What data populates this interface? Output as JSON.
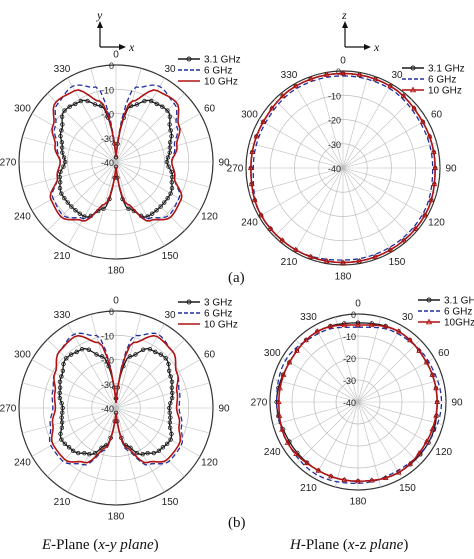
{
  "panel_labels": [
    "(a)",
    "(b)"
  ],
  "captions": {
    "left_plane": "E",
    "left_rest": "-Plane (",
    "left_axes": "x-y plane",
    "left_close": ")",
    "right_plane": "H",
    "right_rest": "-Plane (",
    "right_axes": "x",
    "right_mid": "-z ",
    "right_tail": "plane",
    "right_close": ")"
  },
  "axes_indicators": [
    {
      "vertical": "y",
      "horizontal": "x"
    },
    {
      "vertical": "z",
      "horizontal": "x"
    }
  ],
  "colors": {
    "black": "#1a1a1a",
    "blue": "#1f2f9e",
    "red": "#b01414",
    "grid": "#bdbdbd"
  },
  "chart_data": [
    {
      "type": "polar",
      "id": "a-left",
      "angle_ticks": [
        "0",
        "30",
        "60",
        "90",
        "120",
        "150",
        "180",
        "210",
        "240",
        "270",
        "300",
        "330"
      ],
      "radial_ticks": [
        "0",
        "-10",
        "-20",
        "-30",
        "-40"
      ],
      "rlim": [
        -40,
        0
      ],
      "series": [
        {
          "name": "3.1 GHz",
          "color": "black",
          "marker": "circle",
          "angles": [
            0,
            15,
            30,
            45,
            60,
            75,
            90,
            105,
            120,
            135,
            150,
            165,
            180,
            195,
            210,
            225,
            240,
            255,
            270,
            285,
            300,
            315,
            330,
            345,
            360
          ],
          "values": [
            -38,
            -16,
            -11,
            -10,
            -14,
            -17,
            -19,
            -16,
            -14,
            -14,
            -14,
            -20,
            -38,
            -20,
            -14,
            -14,
            -14,
            -16,
            -19,
            -17,
            -14,
            -10,
            -11,
            -16,
            -38
          ]
        },
        {
          "name": "6 GHz",
          "color": "blue",
          "marker": "none",
          "dash": true,
          "angles": [
            0,
            15,
            30,
            45,
            60,
            75,
            90,
            105,
            120,
            135,
            150,
            165,
            180,
            195,
            210,
            225,
            240,
            255,
            270,
            285,
            300,
            315,
            330,
            345,
            360
          ],
          "values": [
            -38,
            -8,
            -4,
            -6,
            -11,
            -15,
            -17,
            -15,
            -10,
            -9,
            -13,
            -22,
            -38,
            -22,
            -13,
            -9,
            -10,
            -15,
            -17,
            -15,
            -11,
            -6,
            -4,
            -8,
            -38
          ]
        },
        {
          "name": "10 GHz",
          "color": "red",
          "marker": "none",
          "angles": [
            0,
            15,
            30,
            45,
            60,
            75,
            90,
            105,
            120,
            135,
            150,
            165,
            180,
            195,
            210,
            225,
            240,
            255,
            270,
            285,
            300,
            315,
            330,
            345,
            360
          ],
          "values": [
            -38,
            -14,
            -6,
            -5,
            -10,
            -14,
            -17,
            -15,
            -9,
            -8,
            -12,
            -22,
            -38,
            -22,
            -12,
            -8,
            -9,
            -15,
            -17,
            -14,
            -10,
            -5,
            -6,
            -14,
            -38
          ]
        }
      ]
    },
    {
      "type": "polar",
      "id": "a-right",
      "angle_ticks": [
        "0",
        "30",
        "60",
        "90",
        "120",
        "150",
        "180",
        "210",
        "240",
        "270",
        "300",
        "330"
      ],
      "radial_ticks": [
        "0",
        "-10",
        "-20",
        "-30",
        "-40"
      ],
      "rlim": [
        -40,
        0
      ],
      "series": [
        {
          "name": "3.1 GHz",
          "color": "black",
          "marker": "circle",
          "angles": [
            0,
            30,
            60,
            90,
            120,
            150,
            180,
            210,
            240,
            270,
            300,
            330,
            360
          ],
          "values": [
            -1,
            -1,
            -2,
            -2,
            -1,
            -1,
            -1,
            -1,
            -1,
            -2,
            -2,
            -1,
            -1
          ]
        },
        {
          "name": "6 GHz",
          "color": "blue",
          "marker": "none",
          "dash": true,
          "angles": [
            0,
            30,
            60,
            90,
            120,
            150,
            180,
            210,
            240,
            270,
            300,
            330,
            360
          ],
          "values": [
            -2,
            -2,
            -3,
            -3,
            -2,
            -2,
            -2,
            -1,
            -1,
            -3,
            -3,
            -2,
            -2
          ]
        },
        {
          "name": "10 GHz",
          "color": "red",
          "marker": "triangle",
          "angles": [
            0,
            30,
            60,
            90,
            120,
            150,
            180,
            210,
            240,
            270,
            300,
            330,
            360
          ],
          "values": [
            -1,
            -1,
            -2,
            -2,
            -1,
            -1,
            -1,
            -1,
            -1,
            -2,
            -2,
            -1,
            -1
          ]
        }
      ]
    },
    {
      "type": "polar",
      "id": "b-left",
      "angle_ticks": [
        "0",
        "30",
        "60",
        "90",
        "120",
        "150",
        "180",
        "210",
        "240",
        "270",
        "300",
        "330"
      ],
      "radial_ticks": [
        "0",
        "-10",
        "-20",
        "-30",
        "-40"
      ],
      "rlim": [
        -40,
        0
      ],
      "series": [
        {
          "name": "3 GHz",
          "color": "black",
          "marker": "circle",
          "angles": [
            0,
            15,
            30,
            45,
            60,
            75,
            90,
            105,
            120,
            135,
            150,
            165,
            180,
            195,
            210,
            225,
            240,
            255,
            270,
            285,
            300,
            315,
            330,
            345,
            360
          ],
          "values": [
            -36,
            -18,
            -12,
            -11,
            -14,
            -16,
            -18,
            -17,
            -14,
            -15,
            -18,
            -24,
            -38,
            -24,
            -18,
            -15,
            -14,
            -17,
            -18,
            -16,
            -14,
            -11,
            -12,
            -18,
            -36
          ]
        },
        {
          "name": "6 GHz",
          "color": "blue",
          "marker": "none",
          "dash": true,
          "angles": [
            0,
            15,
            30,
            45,
            60,
            75,
            90,
            105,
            120,
            135,
            150,
            165,
            180,
            195,
            210,
            225,
            240,
            255,
            270,
            285,
            300,
            315,
            330,
            345,
            360
          ],
          "values": [
            -38,
            -9,
            -5,
            -7,
            -11,
            -13,
            -14,
            -12,
            -9,
            -9,
            -13,
            -22,
            -38,
            -22,
            -13,
            -9,
            -9,
            -12,
            -14,
            -13,
            -11,
            -7,
            -5,
            -9,
            -38
          ]
        },
        {
          "name": "10 GHz",
          "color": "red",
          "marker": "none",
          "angles": [
            0,
            15,
            30,
            45,
            60,
            75,
            90,
            105,
            120,
            135,
            150,
            165,
            180,
            195,
            210,
            225,
            240,
            255,
            270,
            285,
            300,
            315,
            330,
            345,
            360
          ],
          "values": [
            -38,
            -12,
            -6,
            -7,
            -11,
            -14,
            -15,
            -13,
            -10,
            -10,
            -14,
            -23,
            -38,
            -23,
            -14,
            -10,
            -10,
            -13,
            -15,
            -14,
            -11,
            -7,
            -6,
            -12,
            -38
          ]
        }
      ]
    },
    {
      "type": "polar",
      "id": "b-right",
      "angle_ticks": [
        "0",
        "30",
        "60",
        "90",
        "120",
        "150",
        "180",
        "210",
        "240",
        "270",
        "300",
        "330"
      ],
      "radial_ticks": [
        "0",
        "-10",
        "-20",
        "-30",
        "-40"
      ],
      "rlim": [
        -40,
        0
      ],
      "series": [
        {
          "name": "3.1 GH",
          "color": "black",
          "marker": "circle",
          "angles": [
            0,
            30,
            60,
            90,
            120,
            150,
            180,
            210,
            240,
            270,
            300,
            330,
            360
          ],
          "values": [
            -4,
            -3,
            -4,
            -4,
            -3,
            -3,
            -4,
            -4,
            -4,
            -3,
            -4,
            -3,
            -4
          ]
        },
        {
          "name": "6 GHz",
          "color": "blue",
          "marker": "none",
          "dash": true,
          "angles": [
            0,
            30,
            60,
            90,
            120,
            150,
            180,
            210,
            240,
            270,
            300,
            330,
            360
          ],
          "values": [
            -6,
            -4,
            -3,
            -2,
            -3,
            -4,
            -3,
            -2,
            -3,
            -3,
            -2,
            -4,
            -6
          ]
        },
        {
          "name": "10GHz",
          "color": "red",
          "marker": "triangle",
          "angles": [
            0,
            30,
            60,
            90,
            120,
            150,
            180,
            210,
            240,
            270,
            300,
            330,
            360
          ],
          "values": [
            -5,
            -3,
            -4,
            -4,
            -4,
            -3,
            -4,
            -4,
            -3,
            -4,
            -4,
            -3,
            -5
          ]
        }
      ]
    }
  ]
}
